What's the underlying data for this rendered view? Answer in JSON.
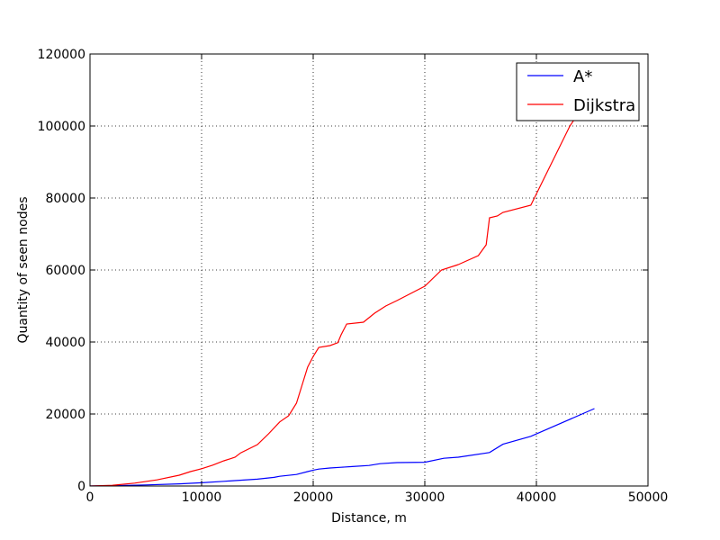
{
  "chart_data": {
    "type": "line",
    "title": "",
    "xlabel": "Distance, m",
    "ylabel": "Quantity of seen nodes",
    "xlim": [
      0,
      50000
    ],
    "ylim": [
      0,
      120000
    ],
    "xticks": [
      0,
      10000,
      20000,
      30000,
      40000,
      50000
    ],
    "yticks": [
      0,
      20000,
      40000,
      60000,
      80000,
      100000,
      120000
    ],
    "xtick_labels": [
      "0",
      "10000",
      "20000",
      "30000",
      "40000",
      "50000"
    ],
    "ytick_labels": [
      "0",
      "20000",
      "40000",
      "60000",
      "80000",
      "100000",
      "120000"
    ],
    "grid": true,
    "legend_position": "top-right",
    "series": [
      {
        "name": "A*",
        "color": "#0000ff",
        "x": [
          0,
          2000,
          5000,
          8000,
          10000,
          12000,
          13000,
          15000,
          16500,
          17000,
          18500,
          19500,
          20000,
          20500,
          21500,
          22500,
          23500,
          25000,
          26000,
          27500,
          30000,
          31700,
          33000,
          35800,
          37000,
          39500,
          45200
        ],
        "y": [
          0,
          100,
          300,
          600,
          900,
          1300,
          1500,
          1900,
          2400,
          2700,
          3200,
          4000,
          4400,
          4700,
          5000,
          5200,
          5400,
          5700,
          6200,
          6500,
          6600,
          7700,
          8000,
          9300,
          11600,
          13800,
          21500
        ]
      },
      {
        "name": "Dijkstra",
        "color": "#ff0000",
        "x": [
          0,
          2000,
          4000,
          6000,
          8000,
          9000,
          10000,
          11000,
          12000,
          13000,
          13500,
          15000,
          16000,
          17000,
          17800,
          18500,
          19000,
          19500,
          20000,
          20500,
          21500,
          22200,
          22500,
          23000,
          24500,
          25500,
          26500,
          27500,
          30000,
          31500,
          33000,
          34800,
          35500,
          35800,
          36500,
          37000,
          39500,
          43000,
          45200
        ],
        "y": [
          0,
          200,
          800,
          1700,
          3000,
          4000,
          4800,
          5800,
          7000,
          8000,
          9200,
          11500,
          14500,
          17800,
          19500,
          23000,
          28000,
          33000,
          36000,
          38500,
          39000,
          39800,
          42000,
          45000,
          45500,
          48000,
          50000,
          51500,
          55500,
          60000,
          61500,
          64000,
          67000,
          74500,
          75000,
          76000,
          78000,
          100000,
          110000
        ]
      }
    ]
  }
}
